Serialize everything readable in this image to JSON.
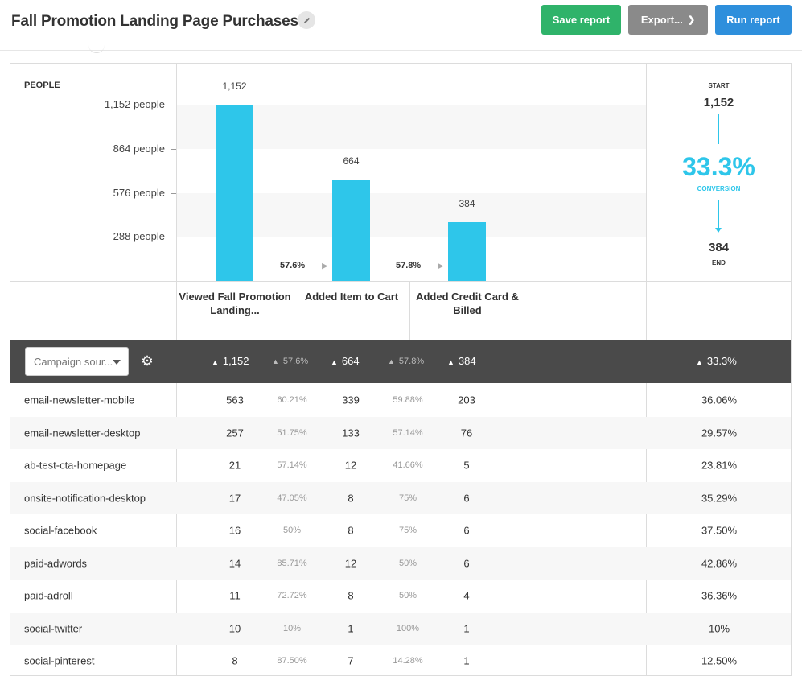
{
  "header": {
    "title": "Fall Promotion Landing Page Purchases",
    "save_label": "Save report",
    "export_label": "Export...",
    "run_label": "Run report"
  },
  "chart_data": {
    "type": "bar",
    "title": "",
    "ylabel": "PEOPLE",
    "categories": [
      "Viewed Fall Promotion Landing...",
      "Added Item to Cart",
      "Added Credit Card & Billed"
    ],
    "values": [
      1152,
      664,
      384
    ],
    "y_ticks": [
      "1,152 people",
      "864 people",
      "576 people",
      "288 people"
    ],
    "y_tick_values": [
      1152,
      864,
      576,
      288
    ],
    "ylim": [
      0,
      1152
    ],
    "value_labels": [
      "1,152",
      "664",
      "384"
    ],
    "step_conversions": [
      "57.6%",
      "57.8%"
    ],
    "bar_color": "#2ec6ea"
  },
  "summary": {
    "start_label": "START",
    "start_value": "1,152",
    "conversion": "33.3%",
    "conversion_label": "CONVERSION",
    "end_value": "384",
    "end_label": "END"
  },
  "table": {
    "dropdown_label": "Campaign sour...",
    "header": {
      "step1": "1,152",
      "pct1": "57.6%",
      "step2": "664",
      "pct2": "57.8%",
      "step3": "384",
      "overall": "33.3%"
    },
    "rows": [
      {
        "source": "email-newsletter-mobile",
        "s1": "563",
        "p1": "60.21%",
        "s2": "339",
        "p2": "59.88%",
        "s3": "203",
        "conv": "36.06%"
      },
      {
        "source": "email-newsletter-desktop",
        "s1": "257",
        "p1": "51.75%",
        "s2": "133",
        "p2": "57.14%",
        "s3": "76",
        "conv": "29.57%"
      },
      {
        "source": "ab-test-cta-homepage",
        "s1": "21",
        "p1": "57.14%",
        "s2": "12",
        "p2": "41.66%",
        "s3": "5",
        "conv": "23.81%"
      },
      {
        "source": "onsite-notification-desktop",
        "s1": "17",
        "p1": "47.05%",
        "s2": "8",
        "p2": "75%",
        "s3": "6",
        "conv": "35.29%"
      },
      {
        "source": "social-facebook",
        "s1": "16",
        "p1": "50%",
        "s2": "8",
        "p2": "75%",
        "s3": "6",
        "conv": "37.50%"
      },
      {
        "source": "paid-adwords",
        "s1": "14",
        "p1": "85.71%",
        "s2": "12",
        "p2": "50%",
        "s3": "6",
        "conv": "42.86%"
      },
      {
        "source": "paid-adroll",
        "s1": "11",
        "p1": "72.72%",
        "s2": "8",
        "p2": "50%",
        "s3": "4",
        "conv": "36.36%"
      },
      {
        "source": "social-twitter",
        "s1": "10",
        "p1": "10%",
        "s2": "1",
        "p2": "100%",
        "s3": "1",
        "conv": "10%"
      },
      {
        "source": "social-pinterest",
        "s1": "8",
        "p1": "87.50%",
        "s2": "7",
        "p2": "14.28%",
        "s3": "1",
        "conv": "12.50%"
      }
    ]
  }
}
